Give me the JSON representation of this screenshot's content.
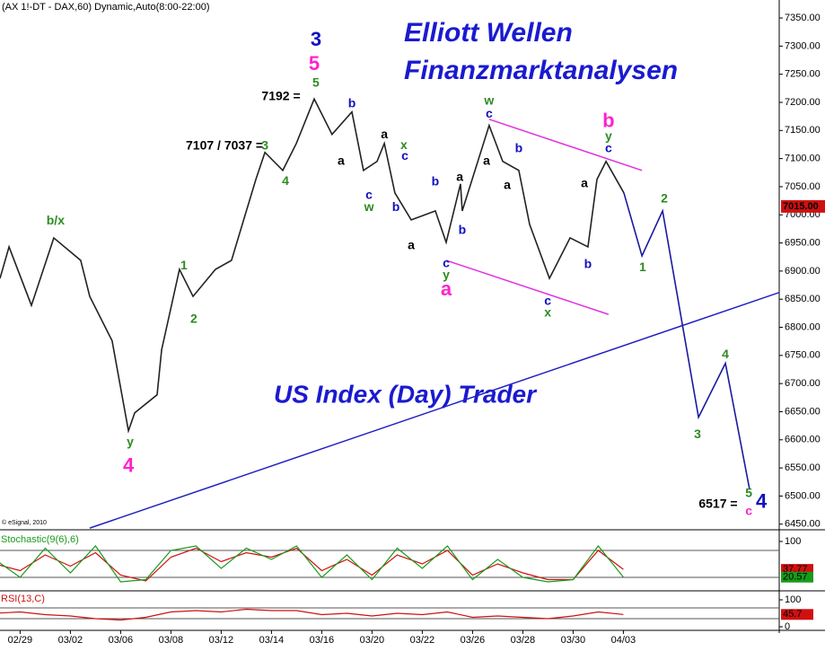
{
  "chart_data": [
    {
      "type": "line",
      "header": "(AX 1!-DT - DAX,60) Dynamic,Auto(8:00-22:00)",
      "title": "Elliott Wellen",
      "subtitle": "Finanzmarktanalysen",
      "banner": "US Index (Day) Trader",
      "credit": "© eSignal, 2010",
      "xlim": [
        0.2,
        31.2
      ],
      "ylim": [
        6440,
        7382
      ],
      "xticks": [
        {
          "value": 1,
          "label": "02/29"
        },
        {
          "value": 3,
          "label": "03/02"
        },
        {
          "value": 5,
          "label": "03/06"
        },
        {
          "value": 7,
          "label": "03/08"
        },
        {
          "value": 9,
          "label": "03/12"
        },
        {
          "value": 11,
          "label": "03/14"
        },
        {
          "value": 13,
          "label": "03/16"
        },
        {
          "value": 15,
          "label": "03/20"
        },
        {
          "value": 17,
          "label": "03/22"
        },
        {
          "value": 19,
          "label": "03/26"
        },
        {
          "value": 21,
          "label": "03/28"
        },
        {
          "value": 23,
          "label": "03/30"
        },
        {
          "value": 25,
          "label": "04/03"
        }
      ],
      "yticks": [
        {
          "value": 6450,
          "label": "6450.00"
        },
        {
          "value": 6500,
          "label": "6500.00"
        },
        {
          "value": 6550,
          "label": "6550.00"
        },
        {
          "value": 6600,
          "label": "6600.00"
        },
        {
          "value": 6650,
          "label": "6650.00"
        },
        {
          "value": 6700,
          "label": "6700.00"
        },
        {
          "value": 6750,
          "label": "6750.00"
        },
        {
          "value": 6800,
          "label": "6800.00"
        },
        {
          "value": 6850,
          "label": "6850.00"
        },
        {
          "value": 6900,
          "label": "6900.00"
        },
        {
          "value": 6950,
          "label": "6950.00"
        },
        {
          "value": 7000,
          "label": "7000.00"
        },
        {
          "value": 7050,
          "label": "7050.00"
        },
        {
          "value": 7100,
          "label": "7100.00"
        },
        {
          "value": 7150,
          "label": "7150.00"
        },
        {
          "value": 7200,
          "label": "7200.00"
        },
        {
          "value": 7250,
          "label": "7250.00"
        },
        {
          "value": 7300,
          "label": "7300.00"
        },
        {
          "value": 7350,
          "label": "7350.00"
        }
      ],
      "price_tag": {
        "value": 7015,
        "label": "7015.00",
        "color": "#d01010"
      },
      "series": [
        {
          "color": "#222222",
          "x": [
            0.2,
            0.56,
            1.45,
            2.34,
            3.41,
            3.77,
            4.66,
            5.31,
            5.56,
            6.45,
            6.63,
            7.34,
            7.88,
            8.77,
            9.41,
            9.84,
            10.38,
            10.74,
            11.45,
            11.99,
            12.7,
            13.41,
            14.2,
            14.66,
            15.2,
            15.49,
            15.91,
            16.56,
            17.52,
            17.95,
            18.52,
            18.59,
            19.66,
            20.2,
            20.84,
            21.27,
            22.06,
            22.88,
            23.59,
            23.95,
            24.31,
            25.02
          ],
          "values": [
            6887,
            6943,
            6839,
            6959,
            6919,
            6855,
            6776,
            6616,
            6648,
            6680,
            6760,
            6903,
            6855,
            6903,
            6919,
            6983,
            7063,
            7111,
            7079,
            7127,
            7206,
            7143,
            7183,
            7079,
            7095,
            7127,
            7039,
            6991,
            7007,
            6951,
            7055,
            7007,
            7159,
            7095,
            7079,
            6983,
            6887,
            6959,
            6943,
            7063,
            7095,
            7039
          ]
        },
        {
          "color": "#1a1aa0",
          "x": [
            25.02,
            25.74,
            26.56,
            27.99,
            29.06,
            30.02
          ],
          "values": [
            7039,
            6927,
            7007,
            6640,
            6736,
            6512
          ]
        }
      ],
      "channel_lines": [
        {
          "color": "#e030e0",
          "x": [
            19.66,
            25.74
          ],
          "y": [
            7170,
            7079
          ]
        },
        {
          "color": "#e030e0",
          "x": [
            17.95,
            24.41
          ],
          "y": [
            6919,
            6823
          ]
        },
        {
          "color": "#2020c0",
          "x": [
            3.77,
            31.27
          ],
          "y": [
            6443,
            6863
          ]
        }
      ],
      "major_labels": [
        {
          "text": "3",
          "x": 12.77,
          "y": 7310,
          "color": "#1010c0"
        },
        {
          "text": "5",
          "x": 12.7,
          "y": 7267,
          "color": "#ff22cc"
        },
        {
          "text": "a",
          "x": 17.95,
          "y": 6866,
          "color": "#ff22cc"
        },
        {
          "text": "b",
          "x": 24.41,
          "y": 7165,
          "color": "#ff22cc"
        },
        {
          "text": "4",
          "x": 5.31,
          "y": 6552,
          "color": "#ff22cc"
        },
        {
          "text": "4",
          "x": 30.49,
          "y": 6488,
          "color": "#1010c0"
        }
      ],
      "labels": [
        {
          "text": "5",
          "x": 12.77,
          "y": 7234,
          "color": "#2e8b22"
        },
        {
          "text": "7192 =",
          "x": 11.38,
          "y": 7210,
          "color": "#000000"
        },
        {
          "text": "7107 / 7037 =",
          "x": 9.13,
          "y": 7122,
          "color": "#000000"
        },
        {
          "text": "3",
          "x": 10.74,
          "y": 7122,
          "color": "#2e8b22"
        },
        {
          "text": "4",
          "x": 11.56,
          "y": 7059,
          "color": "#2e8b22"
        },
        {
          "text": "b/x",
          "x": 2.41,
          "y": 6989,
          "color": "#2e8b22"
        },
        {
          "text": "1",
          "x": 7.52,
          "y": 6909,
          "color": "#2e8b22"
        },
        {
          "text": "2",
          "x": 7.91,
          "y": 6814,
          "color": "#2e8b22"
        },
        {
          "text": "y",
          "x": 5.38,
          "y": 6595,
          "color": "#2e8b22"
        },
        {
          "text": "b",
          "x": 14.2,
          "y": 7197,
          "color": "#1010c0"
        },
        {
          "text": "a",
          "x": 13.77,
          "y": 7095,
          "color": "#000000"
        },
        {
          "text": "a",
          "x": 15.49,
          "y": 7142,
          "color": "#000000"
        },
        {
          "text": "x",
          "x": 16.27,
          "y": 7123,
          "color": "#2e8b22"
        },
        {
          "text": "c",
          "x": 16.31,
          "y": 7104,
          "color": "#1010c0"
        },
        {
          "text": "c",
          "x": 14.88,
          "y": 7034,
          "color": "#1010c0"
        },
        {
          "text": "w",
          "x": 14.88,
          "y": 7013,
          "color": "#2e8b22"
        },
        {
          "text": "b",
          "x": 15.95,
          "y": 7013,
          "color": "#1010c0"
        },
        {
          "text": "a",
          "x": 16.56,
          "y": 6945,
          "color": "#000000"
        },
        {
          "text": "b",
          "x": 17.52,
          "y": 7058,
          "color": "#1010c0"
        },
        {
          "text": "b",
          "x": 18.59,
          "y": 6972,
          "color": "#1010c0"
        },
        {
          "text": "a",
          "x": 18.49,
          "y": 7066,
          "color": "#000000"
        },
        {
          "text": "c",
          "x": 17.95,
          "y": 6913,
          "color": "#1010c0"
        },
        {
          "text": "y",
          "x": 17.95,
          "y": 6892,
          "color": "#2e8b22"
        },
        {
          "text": "w",
          "x": 19.66,
          "y": 7202,
          "color": "#2e8b22"
        },
        {
          "text": "c",
          "x": 19.66,
          "y": 7179,
          "color": "#1010c0"
        },
        {
          "text": "a",
          "x": 19.56,
          "y": 7095,
          "color": "#000000"
        },
        {
          "text": "b",
          "x": 20.84,
          "y": 7117,
          "color": "#1010c0"
        },
        {
          "text": "a",
          "x": 20.38,
          "y": 7052,
          "color": "#000000"
        },
        {
          "text": "c",
          "x": 21.99,
          "y": 6846,
          "color": "#1010c0"
        },
        {
          "text": "x",
          "x": 21.99,
          "y": 6825,
          "color": "#2e8b22"
        },
        {
          "text": "b",
          "x": 23.59,
          "y": 6911,
          "color": "#1010c0"
        },
        {
          "text": "a",
          "x": 23.45,
          "y": 7055,
          "color": "#000000"
        },
        {
          "text": "y",
          "x": 24.41,
          "y": 7139,
          "color": "#2e8b22"
        },
        {
          "text": "c",
          "x": 24.41,
          "y": 7117,
          "color": "#1010c0"
        },
        {
          "text": "2",
          "x": 26.63,
          "y": 7028,
          "color": "#2e8b22"
        },
        {
          "text": "1",
          "x": 25.77,
          "y": 6906,
          "color": "#2e8b22"
        },
        {
          "text": "3",
          "x": 27.95,
          "y": 6609,
          "color": "#2e8b22"
        },
        {
          "text": "4",
          "x": 29.06,
          "y": 6751,
          "color": "#2e8b22"
        },
        {
          "text": "5",
          "x": 29.99,
          "y": 6504,
          "color": "#2e8b22"
        },
        {
          "text": "c",
          "x": 29.99,
          "y": 6472,
          "color": "#ff22cc"
        },
        {
          "text": "6517 =",
          "x": 28.77,
          "y": 6485,
          "color": "#000000"
        }
      ]
    },
    {
      "type": "line",
      "title": "Stochastic(9(6),6)",
      "xlim": [
        0.2,
        31.2
      ],
      "ylim": [
        0,
        100
      ],
      "yticks": [
        100
      ],
      "levels": [
        20,
        80
      ],
      "series": [
        {
          "color": "#d01010",
          "x": [
            0,
            1,
            2,
            3,
            4,
            5,
            6,
            7,
            8,
            9,
            10,
            11,
            12,
            13,
            14,
            15,
            16,
            17,
            18,
            19,
            20,
            21,
            22,
            23,
            24,
            25
          ],
          "values": [
            50,
            35,
            70,
            45,
            75,
            25,
            12,
            65,
            85,
            55,
            75,
            65,
            85,
            35,
            60,
            25,
            70,
            50,
            80,
            25,
            50,
            30,
            15,
            15,
            80,
            37.77
          ]
        },
        {
          "color": "#1a9a1a",
          "x": [
            0,
            1,
            2,
            3,
            4,
            5,
            6,
            7,
            8,
            9,
            10,
            11,
            12,
            13,
            14,
            15,
            16,
            17,
            18,
            19,
            20,
            21,
            22,
            23,
            24,
            25
          ],
          "values": [
            60,
            20,
            85,
            30,
            90,
            10,
            15,
            80,
            90,
            40,
            85,
            60,
            90,
            20,
            70,
            15,
            85,
            40,
            90,
            15,
            60,
            20,
            10,
            15,
            90,
            20.57
          ]
        }
      ]
    },
    {
      "type": "line",
      "title": "RSI(13,C)",
      "xlim": [
        0.2,
        31.2
      ],
      "ylim": [
        0,
        100
      ],
      "yticks": [
        0,
        100
      ],
      "levels": [
        30,
        70
      ],
      "series": [
        {
          "color": "#d01010",
          "x": [
            0,
            1,
            2,
            3,
            4,
            5,
            6,
            7,
            8,
            9,
            10,
            11,
            12,
            13,
            14,
            15,
            16,
            17,
            18,
            19,
            20,
            21,
            22,
            23,
            24,
            25
          ],
          "values": [
            50,
            55,
            45,
            40,
            30,
            25,
            35,
            55,
            60,
            55,
            65,
            60,
            60,
            45,
            50,
            40,
            50,
            45,
            55,
            35,
            40,
            35,
            30,
            40,
            55,
            45.7
          ]
        }
      ]
    }
  ]
}
